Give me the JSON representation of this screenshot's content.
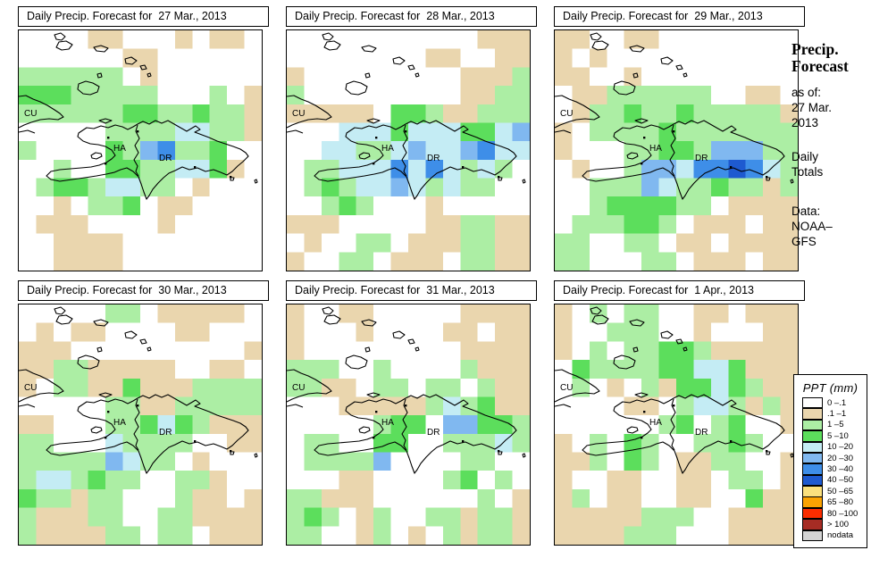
{
  "panels": [
    {
      "title": "Daily Precip. Forecast for  27 Mar., 2013",
      "grid": [
        "....tt...t.tt.",
        "......tt......",
        "gggggg.t......",
        "GGGggggg...g.t",
        "ggggggGGggGggt",
        ".....ggggccggt",
        "g....GgbBggG..",
        "..g..GGggccGt.",
        ".gGGgccgg.t...",
        "..t.ggG.tt....",
        ".ttt....t.....",
        "..tttt........",
        "..tttt........"
      ]
    },
    {
      "title": "Daily Precip. Forecast for  28 Mar., 2013",
      "grid": [
        "...........ttt",
        "........tt..tt",
        "t.........tttg",
        "g.........ttgg",
        "ttttt.GGgttggg",
        "...cccGcccGGcb",
        "..ccggcbccbBcc",
        ".ggcccBcBcgcg.",
        ".gGgccbcgcgg..",
        "..gGg...t.....",
        "ttt.....ttggtt",
        ".t..gg.tttggtt",
        "t..gg.ttt.ggtt"
      ]
    },
    {
      "title": "Daily Precip. Forecast for  29 Mar., 2013",
      "grid": [
        "tt..tt........",
        "t.t...........",
        "tt..t.........",
        ".ttgggggg..tt.",
        ".tggGggGgggggt",
        "t.ggggGggggggg",
        "t...ggGGgbbbgg",
        ".t..gbbcBBDBcg",
        "..gggbcggGggtg",
        "..gGGGGgg.tttt",
        ".gggGGg.ttt.tt",
        "gg..gg.tt.tttt",
        "gg...gg.ttt.tt"
      ]
    },
    {
      "title": "Daily Precip. Forecast for  30 Mar., 2013",
      "grid": [
        ".....gg.ttttt.",
        ".t.tt....tt...",
        "ttt..........t",
        "ttggttttt..tt.",
        "t.ggttGtttgggg",
        ".....ggttggggg",
        "tt...ggGcGgttt",
        "gg...cgggg..tt",
        "gggggbcgg.t...",
        "gccgGgg..ggt..",
        "Gggtgg...gtt.t",
        "gtttgg..ggtttt",
        "gttttgg.gg.ttt"
      ]
    },
    {
      "title": "Daily Precip. Forecast for  31 Mar., 2013",
      "grid": [
        "t..tt.....tttt",
        "t...t....tt.tt",
        "t.........tttt",
        "ggg..g....gttt",
        "ggtt.gg.gg.gtt",
        "...tttttgcgGtt",
        ".....gGG.bbGGg",
        ".gg..GG..gggcg",
        ".ggggb....gg..",
        "...tt....gG.g.",
        "ggttt......g.t",
        "gGg.tg..ggtggt",
        "gg..tg.t.gtggt"
      ]
    },
    {
      "title": "Daily Precip. Forecast for  1 Apr., 2013",
      "grid": [
        "t.g.gg..tt.ttt",
        "t..ggg..t...tt",
        "t.g.ggGGgttttt",
        ".GggggGGccGttt",
        ".g.t.gtGGcGgtt",
        "....tt.gccgtgt",
        "......gG.gG..t",
        "t.g.Gg..ggGg..",
        "ttg.Gg.ttgg..t",
        "t..tt..tt.gg.t",
        "tg.tt..tt..Gtt",
        "tttttggg..tttt",
        "ttttggg...tttt"
      ]
    }
  ],
  "map_labels": {
    "cu": "CU",
    "ha": "HA",
    "dr": "DR"
  },
  "side_text": {
    "title_line1": "Precip.",
    "title_line2": "Forecast",
    "as_of_label": "as of:",
    "as_of_date_line1": "27 Mar.",
    "as_of_date_line2": "2013",
    "totals_line1": "Daily",
    "totals_line2": "Totals",
    "data_label": "Data:",
    "data_source_line1": "NOAA–",
    "data_source_line2": "GFS"
  },
  "legend": {
    "title": "PPT (mm)",
    "entries": [
      {
        "label": "0 –.1",
        "color": "#FFFFFF"
      },
      {
        "label": ".1 –1",
        "color": "#EAD6AE"
      },
      {
        "label": "1 –5",
        "color": "#ACEEA4"
      },
      {
        "label": "5 –10",
        "color": "#5CDE5C"
      },
      {
        "label": "10 –20",
        "color": "#C4ECF4"
      },
      {
        "label": "20 –30",
        "color": "#80B8F0"
      },
      {
        "label": "30 –40",
        "color": "#3E8EE8"
      },
      {
        "label": "40 –50",
        "color": "#1E5AD0"
      },
      {
        "label": "50 –65",
        "color": "#FAE07E"
      },
      {
        "label": "65 –80",
        "color": "#FBA302"
      },
      {
        "label": "80 –100",
        "color": "#FB2D00"
      },
      {
        "label": "> 100",
        "color": "#A62C24"
      },
      {
        "label": "nodata",
        "color": "#D4D4D4"
      }
    ]
  },
  "palette": {
    ".": "#FFFFFF",
    "t": "#EAD6AE",
    "g": "#ACEEA4",
    "G": "#5CDE5C",
    "c": "#C4ECF4",
    "b": "#80B8F0",
    "B": "#3E8EE8",
    "D": "#1E5AD0"
  }
}
